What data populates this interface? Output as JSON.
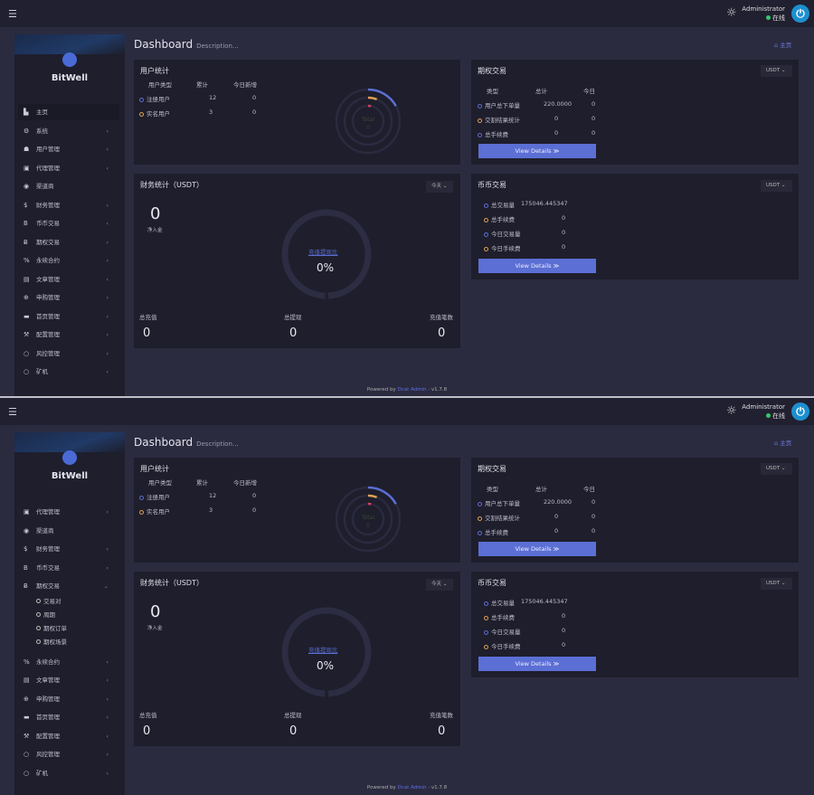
{
  "topbar": {
    "menu_icon": "menu-icon",
    "theme_icon": "sun-icon",
    "username": "Administrator",
    "status": "在线",
    "avatar_icon": "power-icon"
  },
  "brand": {
    "name": "BitWell"
  },
  "sidebar": {
    "items": [
      {
        "label": "主页",
        "icon": "▙",
        "chevron": false
      },
      {
        "label": "系统",
        "icon": "⚙",
        "chevron": true
      },
      {
        "label": "用户管理",
        "icon": "☗",
        "chevron": true
      },
      {
        "label": "代理管理",
        "icon": "▣",
        "chevron": true
      },
      {
        "label": "渠道商",
        "icon": "◉",
        "chevron": false
      },
      {
        "label": "财务管理",
        "icon": "$",
        "chevron": true
      },
      {
        "label": "币币交易",
        "icon": "B",
        "chevron": true
      },
      {
        "label": "期权交易",
        "icon": "Ƀ",
        "chevron": true,
        "children": [
          "交易对",
          "周期",
          "期权订单",
          "期权场景"
        ]
      },
      {
        "label": "永续合约",
        "icon": "%",
        "chevron": true
      },
      {
        "label": "文章管理",
        "icon": "▤",
        "chevron": true
      },
      {
        "label": "申购管理",
        "icon": "⊕",
        "chevron": true
      },
      {
        "label": "首页管理",
        "icon": "▬",
        "chevron": true
      },
      {
        "label": "配置管理",
        "icon": "⚒",
        "chevron": true
      },
      {
        "label": "风控管理",
        "icon": "○",
        "chevron": true
      },
      {
        "label": "矿机",
        "icon": "○",
        "chevron": true
      }
    ]
  },
  "page": {
    "title": "Dashboard",
    "description": "Description...",
    "breadcrumb": "主页"
  },
  "user_stats": {
    "title": "用户统计",
    "headers": [
      "用户类型",
      "累计",
      "今日新增"
    ],
    "rows": [
      {
        "label": "注册用户",
        "total": "12",
        "today": "0",
        "color": "#5b6fd4"
      },
      {
        "label": "实名用户",
        "total": "3",
        "today": "0",
        "color": "#e0a050"
      }
    ],
    "chart_center": "Total",
    "chart_value": "0",
    "ring_fractions": [
      0.17,
      0.06,
      0.03
    ]
  },
  "options": {
    "title": "期权交易",
    "currency": "USDT",
    "headers": [
      "类型",
      "总计",
      "今日"
    ],
    "rows": [
      {
        "label": "用户总下单量",
        "total": "220.0000",
        "today": "0",
        "color": "#5b6fd4"
      },
      {
        "label": "交割结果统计",
        "total": "0",
        "today": "0",
        "color": "#e0a050"
      },
      {
        "label": "总手续费",
        "total": "0",
        "today": "0",
        "color": "#5b6fd4"
      }
    ],
    "button": "View Details ≫"
  },
  "finance": {
    "title": "财务统计（USDT）",
    "period": "今天",
    "net_value": "0",
    "net_label": "净入金",
    "ratio_label": "充值提现比",
    "ratio_value": "0%",
    "ratio": 0,
    "stats": [
      {
        "label": "总充值",
        "value": "0"
      },
      {
        "label": "总提现",
        "value": "0"
      },
      {
        "label": "充值笔数",
        "value": "0"
      }
    ]
  },
  "spot": {
    "title": "币币交易",
    "currency": "USDT",
    "rows": [
      {
        "label": "总交易量",
        "value": "175046.445347",
        "color": "#5b6fd4"
      },
      {
        "label": "总手续费",
        "value": "0",
        "color": "#e0a050"
      },
      {
        "label": "今日交易量",
        "value": "0",
        "color": "#5b6fd4"
      },
      {
        "label": "今日手续费",
        "value": "0",
        "color": "#e0a050"
      }
    ],
    "button": "View Details ≫"
  },
  "footer": {
    "prefix": "Powered by",
    "link": "Dcat Admin",
    "version": "· v1.7.8"
  }
}
